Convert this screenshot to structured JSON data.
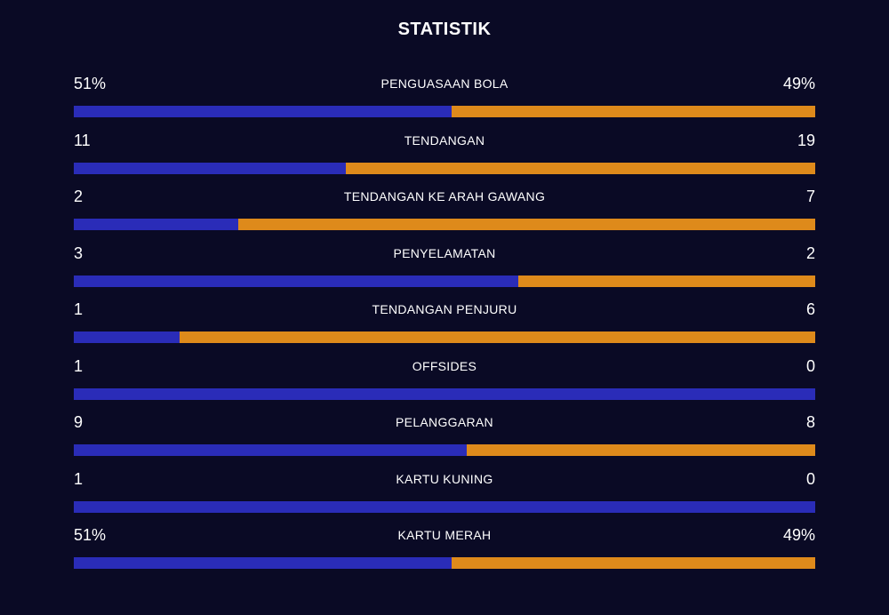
{
  "title": "STATISTIK",
  "colors": {
    "background": "#0a0a25",
    "home": "#2a2cb8",
    "away": "#de8a1b",
    "text": "#ffffff"
  },
  "stats": [
    {
      "label": "PENGUASAAN BOLA",
      "home": "51%",
      "away": "49%",
      "home_share": 0.51
    },
    {
      "label": "TENDANGAN",
      "home": "11",
      "away": "19",
      "home_share": 0.3667
    },
    {
      "label": "TENDANGAN KE ARAH GAWANG",
      "home": "2",
      "away": "7",
      "home_share": 0.2222
    },
    {
      "label": "PENYELAMATAN",
      "home": "3",
      "away": "2",
      "home_share": 0.6
    },
    {
      "label": "TENDANGAN PENJURU",
      "home": "1",
      "away": "6",
      "home_share": 0.1429
    },
    {
      "label": "OFFSIDES",
      "home": "1",
      "away": "0",
      "home_share": 1.0
    },
    {
      "label": "PELANGGARAN",
      "home": "9",
      "away": "8",
      "home_share": 0.5294
    },
    {
      "label": "KARTU KUNING",
      "home": "1",
      "away": "0",
      "home_share": 1.0
    },
    {
      "label": "KARTU MERAH",
      "home": "51%",
      "away": "49%",
      "home_share": 0.51
    }
  ]
}
